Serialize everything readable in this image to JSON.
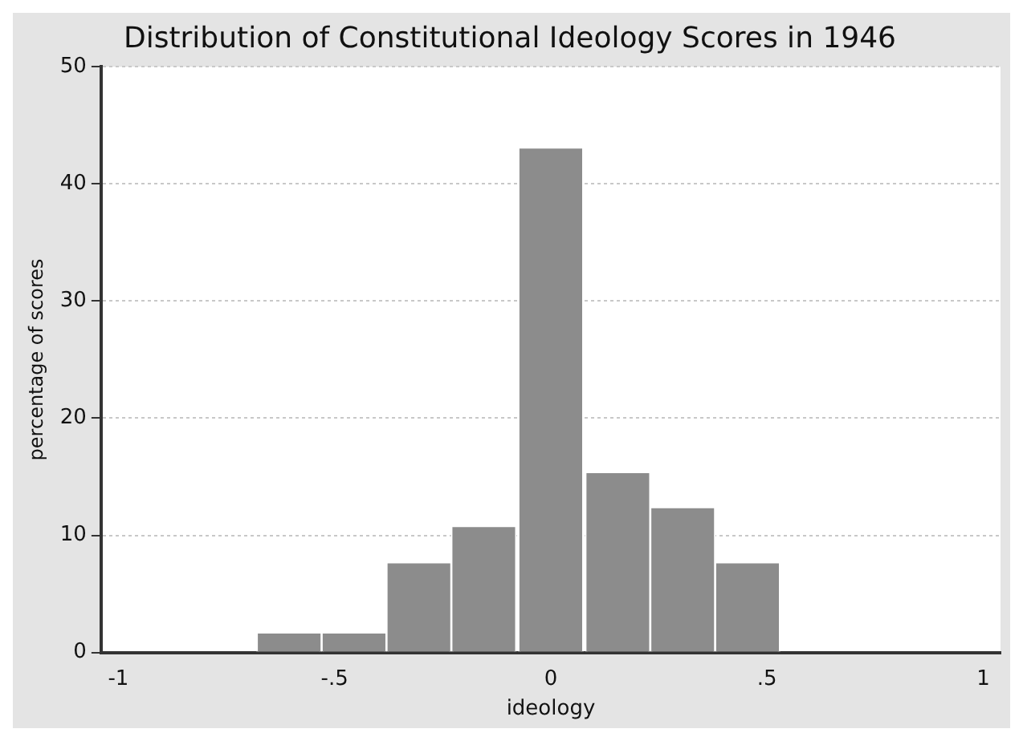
{
  "chart_data": {
    "type": "histogram",
    "title": "Distribution of Constitutional Ideology Scores in 1946",
    "xlabel": "ideology",
    "ylabel": "percentage of scores",
    "bins": [
      -0.68,
      -0.53,
      -0.38,
      -0.23,
      -0.08,
      0.08,
      0.23,
      0.38,
      0.53
    ],
    "values": [
      1.7,
      1.7,
      7.7,
      10.8,
      43.1,
      15.4,
      12.4,
      7.7
    ],
    "color": "#8c8c8c",
    "xlim": [
      -1.04,
      1.04
    ],
    "ylim": [
      0,
      50
    ],
    "xticks": [
      {
        "value": -1,
        "label": "-1"
      },
      {
        "value": -0.5,
        "label": "-.5"
      },
      0,
      {
        "value": 0.5,
        "label": ".5"
      },
      1
    ],
    "yticks": [
      0,
      10,
      20,
      30,
      40,
      50
    ],
    "grid": "y",
    "legend": false
  }
}
